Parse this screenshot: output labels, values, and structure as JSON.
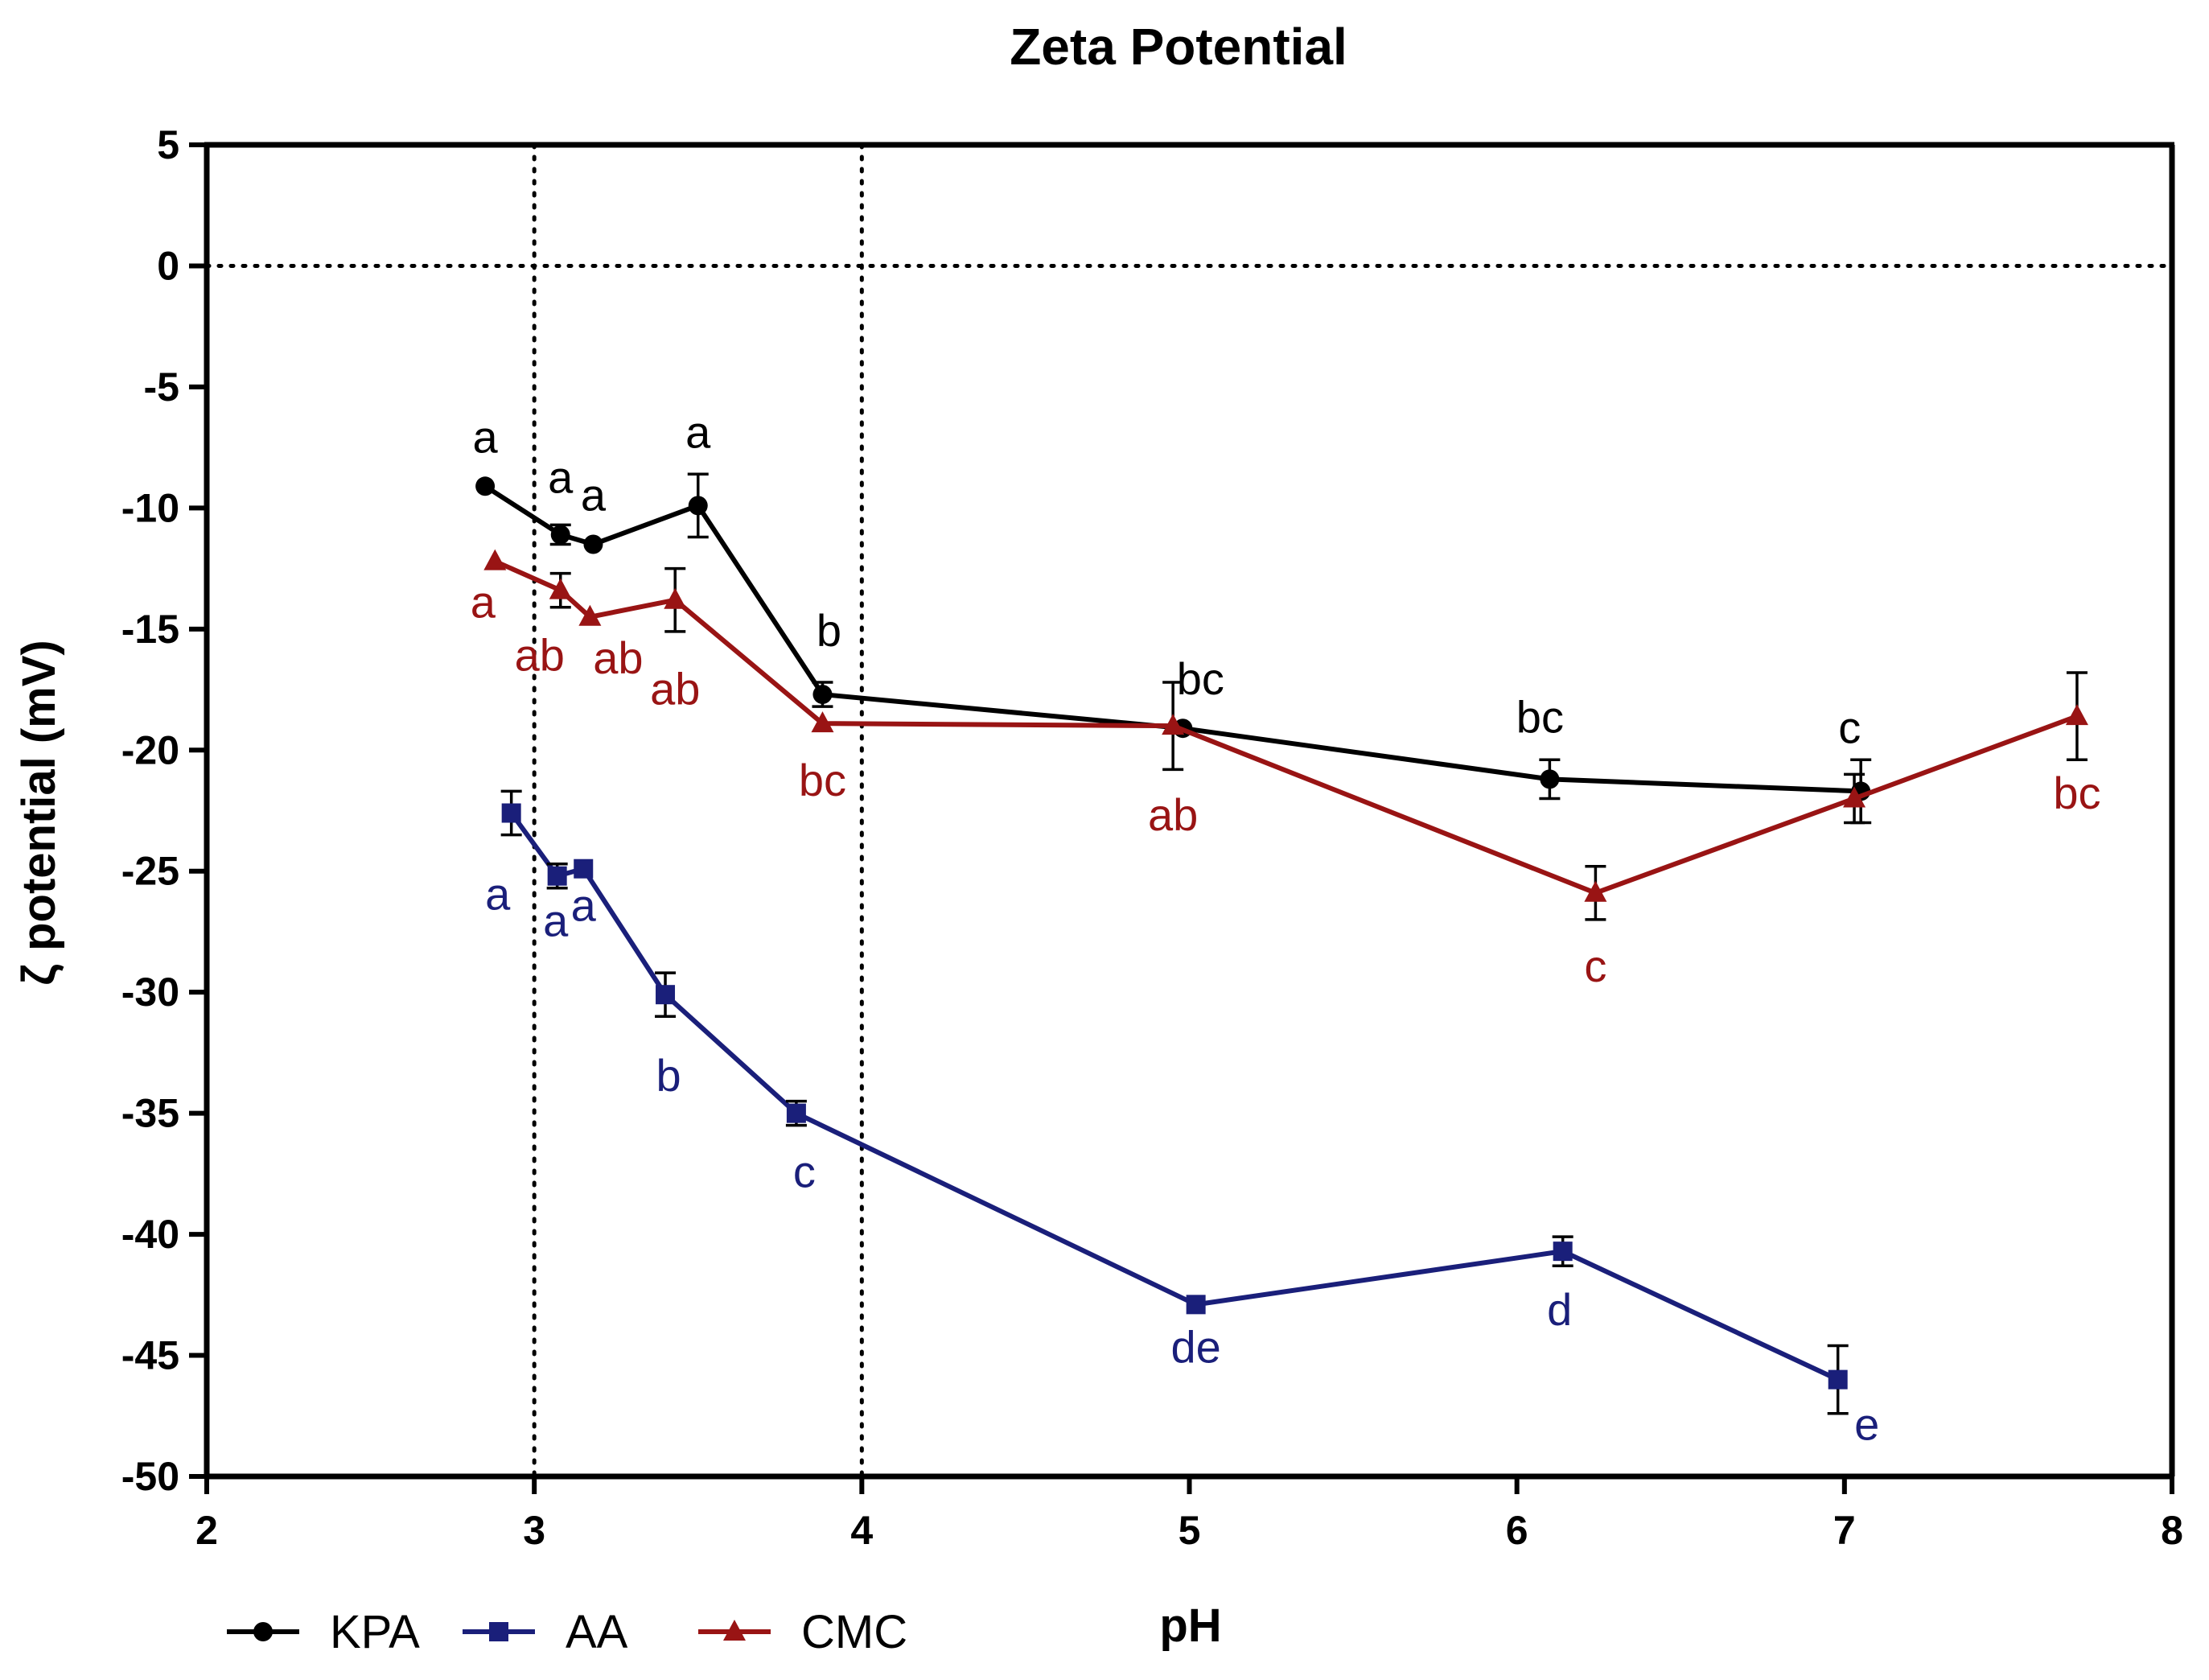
{
  "chart_data": {
    "type": "line",
    "title": "Zeta Potential",
    "xlabel": "pH",
    "ylabel": "ζ potential (mV)",
    "xlim": [
      2,
      8
    ],
    "ylim": [
      -50,
      5
    ],
    "xticks": [
      "2",
      "3",
      "4",
      "5",
      "6",
      "7",
      "8"
    ],
    "yticks": [
      "5",
      "0",
      "-5",
      "-10",
      "-15",
      "-20",
      "-25",
      "-30",
      "-35",
      "-40",
      "-45",
      "-50"
    ],
    "reference_lines": {
      "horizontal": [
        0
      ],
      "vertical": [
        3,
        4
      ]
    },
    "legend": {
      "placement": "bottom-left"
    },
    "series": [
      {
        "name": "KPA",
        "color": "#000000",
        "marker": "circle",
        "x": [
          2.85,
          3.08,
          3.18,
          3.5,
          3.88,
          4.98,
          6.1,
          7.05
        ],
        "y": [
          -9.1,
          -11.1,
          -11.5,
          -9.9,
          -17.7,
          -19.1,
          -21.2,
          -21.7
        ],
        "error": [
          0,
          0.4,
          0,
          1.3,
          0.5,
          0,
          0.8,
          1.3
        ],
        "labels": [
          "a",
          "a",
          "a",
          "a",
          "b",
          "bc",
          "bc",
          "c"
        ]
      },
      {
        "name": "AA",
        "color": "#1a1f7a",
        "marker": "square",
        "x": [
          2.93,
          3.07,
          3.15,
          3.4,
          3.8,
          5.02,
          6.14,
          6.98
        ],
        "y": [
          -22.6,
          -25.2,
          -24.9,
          -30.1,
          -35.0,
          -42.9,
          -40.7,
          -46.0
        ],
        "error": [
          0.9,
          0.5,
          0,
          0.9,
          0.5,
          0,
          0.6,
          1.4
        ],
        "labels": [
          "a",
          "a",
          "a",
          "b",
          "c",
          "de",
          "d",
          "e"
        ]
      },
      {
        "name": "CMC",
        "color": "#991414",
        "marker": "triangle",
        "x": [
          2.88,
          3.08,
          3.17,
          3.43,
          3.88,
          4.95,
          6.24,
          7.03,
          7.71
        ],
        "y": [
          -12.2,
          -13.4,
          -14.5,
          -13.8,
          -18.9,
          -19.0,
          -25.9,
          -22.0,
          -18.6
        ],
        "error": [
          0,
          0.7,
          0,
          1.3,
          0,
          1.8,
          1.1,
          1.0,
          1.8
        ],
        "labels": [
          "a",
          "ab",
          "ab",
          "ab",
          "bc",
          "ab",
          "c",
          "",
          "bc"
        ]
      }
    ]
  }
}
